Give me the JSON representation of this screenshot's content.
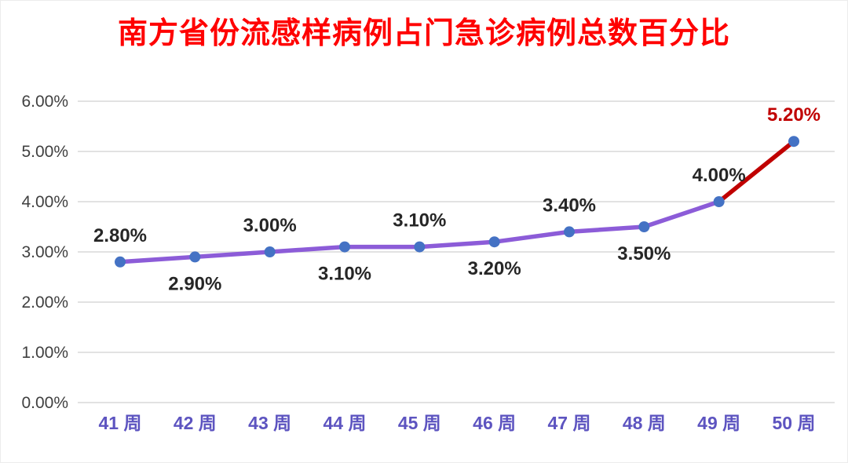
{
  "chart_data": {
    "type": "line",
    "title": "南方省份流感样病例占门急诊病例总数百分比",
    "categories": [
      "41 周",
      "42 周",
      "43 周",
      "44 周",
      "45 周",
      "46 周",
      "47 周",
      "48 周",
      "49 周",
      "50 周"
    ],
    "values": [
      2.8,
      2.9,
      3.0,
      3.1,
      3.1,
      3.2,
      3.4,
      3.5,
      4.0,
      5.2
    ],
    "data_labels": [
      "2.80%",
      "2.90%",
      "3.00%",
      "3.10%",
      "3.10%",
      "3.20%",
      "3.40%",
      "3.50%",
      "4.00%",
      "5.20%"
    ],
    "label_positions": [
      "above",
      "below",
      "above",
      "below",
      "above",
      "below",
      "above",
      "below",
      "above",
      "above"
    ],
    "y_ticks": [
      "0.00%",
      "1.00%",
      "2.00%",
      "3.00%",
      "4.00%",
      "5.00%",
      "6.00%"
    ],
    "ylim": [
      0,
      6
    ],
    "grid": true,
    "legend": "none",
    "highlight_last_segment": true,
    "colors": {
      "title": "#ff0000",
      "line": "#8c5cd8",
      "highlight_segment": "#c00000",
      "marker": "#4472c4",
      "data_labels": "#262626",
      "highlight_label": "#c00000",
      "x_labels": "#5d54c0",
      "y_labels": "#404040",
      "gridline": "#d9d9d9"
    }
  }
}
